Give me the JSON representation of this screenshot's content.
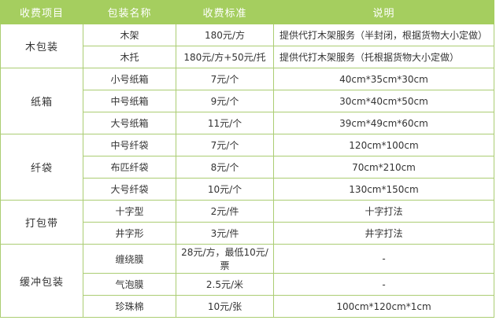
{
  "table": {
    "headers": [
      "收费项目",
      "包装名称",
      "收费标准",
      "说明"
    ],
    "groups": [
      {
        "item": "木包装",
        "rows": [
          {
            "name": "木架",
            "price": "180元/方",
            "note": "提供代打木架服务（半封闭，根据货物大小定做）"
          },
          {
            "name": "木托",
            "price": "180元/方+50元/托",
            "note": "提供代打木架服务（托根据货物大小定做）"
          }
        ]
      },
      {
        "item": "纸箱",
        "rows": [
          {
            "name": "小号纸箱",
            "price": "7元/个",
            "note": "40cm*35cm*30cm"
          },
          {
            "name": "中号纸箱",
            "price": "9元/个",
            "note": "30cm*40cm*50cm"
          },
          {
            "name": "大号纸箱",
            "price": "11元/个",
            "note": "39cm*49cm*60cm"
          }
        ]
      },
      {
        "item": "纤袋",
        "rows": [
          {
            "name": "中号纤袋",
            "price": "7元/个",
            "note": "120cm*100cm"
          },
          {
            "name": "布匹纤袋",
            "price": "8元/个",
            "note": "70cm*210cm"
          },
          {
            "name": "大号纤袋",
            "price": "10元/个",
            "note": "130cm*150cm"
          }
        ]
      },
      {
        "item": "打包带",
        "rows": [
          {
            "name": "十字型",
            "price": "2元/件",
            "note": "十字打法"
          },
          {
            "name": "井字形",
            "price": "3元/件",
            "note": "井字打法"
          }
        ]
      },
      {
        "item": "缓冲包装",
        "rows": [
          {
            "name": "缠绕膜",
            "price": "28元/方，最低10元/票",
            "note": "-"
          },
          {
            "name": "气泡膜",
            "price": "2.5元/米",
            "note": "-"
          },
          {
            "name": "珍珠棉",
            "price": "10元/张",
            "note": "100cm*120cm*1cm"
          }
        ]
      }
    ],
    "colors": {
      "header_bg": "#A5CE5F",
      "border": "#ABCD73",
      "header_text": "#FFFFFF",
      "cell_text": "#333333"
    }
  }
}
